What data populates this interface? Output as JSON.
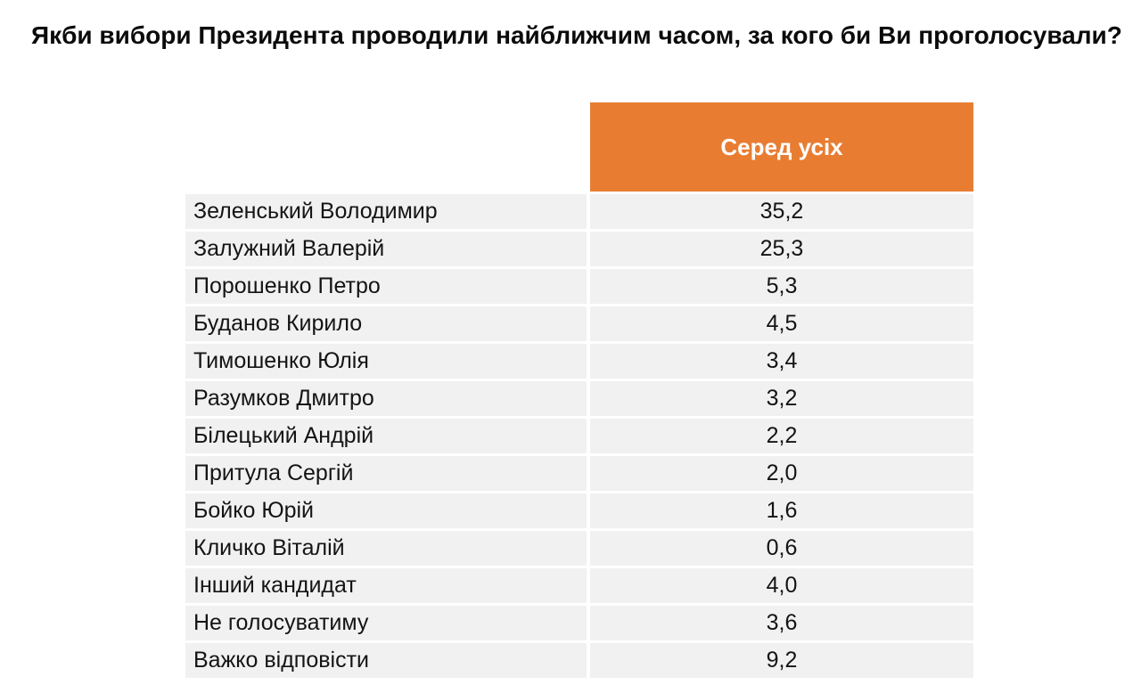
{
  "title": "Якби вибори Президента проводили найближчим часом, за кого би Ви проголосували?",
  "table": {
    "column_header": "Серед усіх",
    "rows": [
      {
        "name": "Зеленський Володимир",
        "value": "35,2"
      },
      {
        "name": "Залужний Валерій",
        "value": "25,3"
      },
      {
        "name": "Порошенко Петро",
        "value": "5,3"
      },
      {
        "name": "Буданов Кирило",
        "value": "4,5"
      },
      {
        "name": "Тимошенко Юлія",
        "value": "3,4"
      },
      {
        "name": "Разумков Дмитро",
        "value": "3,2"
      },
      {
        "name": "Білецький Андрій",
        "value": "2,2"
      },
      {
        "name": "Притула Сергій",
        "value": "2,0"
      },
      {
        "name": "Бойко Юрій",
        "value": "1,6"
      },
      {
        "name": "Кличко Віталій",
        "value": "0,6"
      },
      {
        "name": "Інший кандидат",
        "value": "4,0"
      },
      {
        "name": "Не голосуватиму",
        "value": "3,6"
      },
      {
        "name": "Важко відповісти",
        "value": "9,2"
      }
    ]
  },
  "colors": {
    "header_orange": "#E87D32",
    "row_background": "#F1F1F1",
    "row_divider": "#FFFFFF",
    "title_text": "#0B0B0B",
    "header_text": "#FFFFFF",
    "cell_text": "#141414"
  },
  "chart_data": {
    "type": "table",
    "title": "Якби вибори Президента проводили найближчим часом, за кого би Ви проголосували?",
    "columns": [
      "",
      "Серед усіх"
    ],
    "categories": [
      "Зеленський Володимир",
      "Залужний Валерій",
      "Порошенко Петро",
      "Буданов Кирило",
      "Тимошенко Юлія",
      "Разумков Дмитро",
      "Білецький Андрій",
      "Притула Сергій",
      "Бойко Юрій",
      "Кличко Віталій",
      "Інший кандидат",
      "Не голосуватиму",
      "Важко відповісти"
    ],
    "values": [
      35.2,
      25.3,
      5.3,
      4.5,
      3.4,
      3.2,
      2.2,
      2.0,
      1.6,
      0.6,
      4.0,
      3.6,
      9.2
    ],
    "value_format": "percent, comma decimal separator",
    "legend_position": "none",
    "grid": false
  }
}
